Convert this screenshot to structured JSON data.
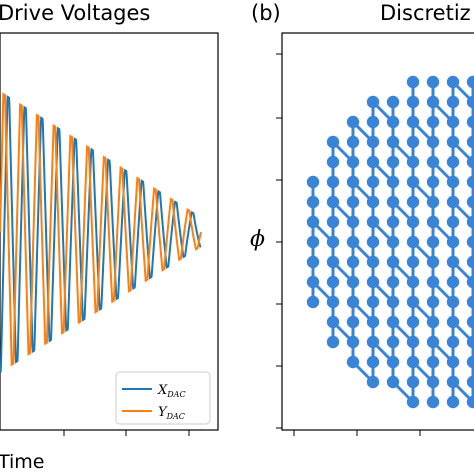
{
  "chart_data": [
    {
      "panel_label": "",
      "title": "Drive Voltages",
      "type": "line",
      "xlabel": "Time",
      "ylabel": "",
      "grid": false,
      "legend_position": "bottom-right",
      "series": [
        {
          "name": "X_DAC",
          "legend_main": "X",
          "legend_sub": "DAC",
          "color": "#1f77b4"
        },
        {
          "name": "Y_DAC",
          "legend_main": "Y",
          "legend_sub": "DAC",
          "color": "#ff7f0e"
        }
      ],
      "signal": {
        "cycles": 12,
        "peak_amplitude": 1.0,
        "final_amplitude": 0.1,
        "phase_shift_deg": 90
      }
    },
    {
      "panel_label": "(b)",
      "title": "Discretiz",
      "type": "scatter",
      "xlabel": "",
      "ylabel": "ϕ",
      "grid": false,
      "marker_color": "#3a84d8",
      "pattern": "discretized spiral on grid",
      "grid_step": 1,
      "radius": 8.6
    }
  ]
}
